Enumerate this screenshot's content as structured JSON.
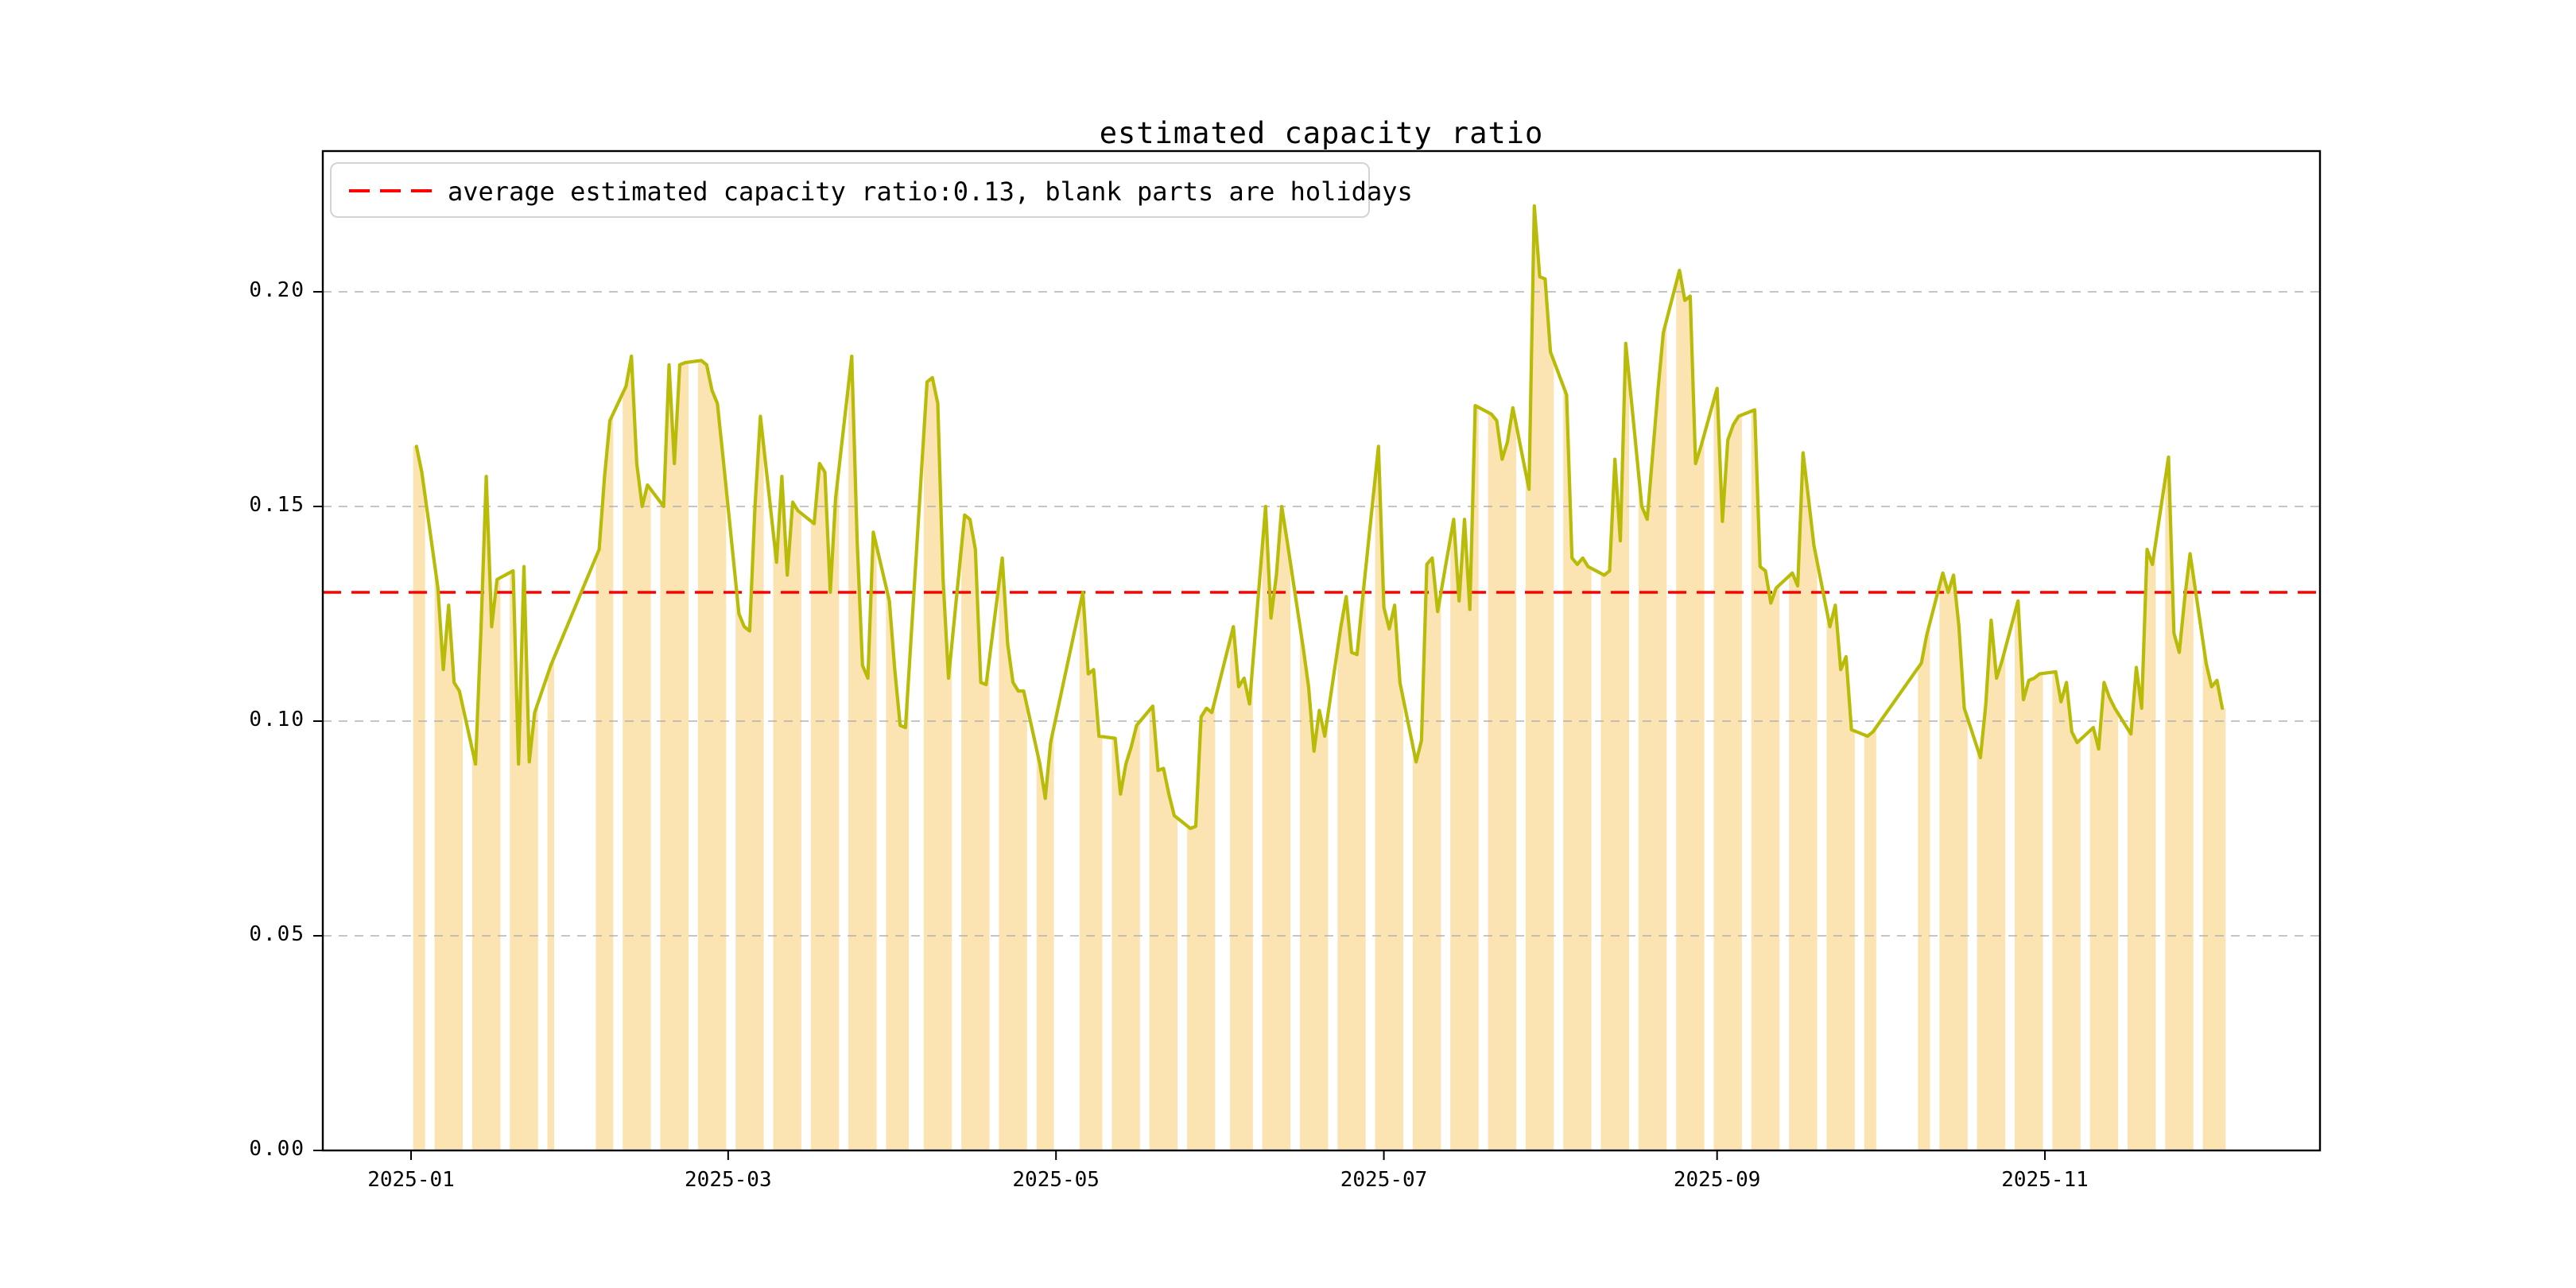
{
  "title": "estimated capacity ratio",
  "legend": {
    "label": "average estimated capacity ratio:0.13, blank parts are holidays"
  },
  "colors": {
    "line": "#b8bc08",
    "band_fill": "#fce3b2",
    "avg_line": "#ff0000",
    "grid": "#b2b2b2",
    "axis": "#000000",
    "legend_border": "#d4d4d4",
    "text": "#000000",
    "background": "#ffffff"
  },
  "chart_data": {
    "type": "line",
    "title": "estimated capacity ratio",
    "xlabel": "",
    "ylabel": "",
    "legend_position": "upper left",
    "grid": "dashed horizontal",
    "avg_line": {
      "value": 0.13,
      "style": "dashed",
      "color": "#ff0000"
    },
    "area_note": "orange area fills under the line for consecutive trading-day runs; white gaps are weekends/holidays",
    "ylim": [
      0.0,
      0.2328
    ],
    "xlim_days_from_jan1_2025": [
      -16.4,
      355.2
    ],
    "y_ticks": [
      [
        0.0,
        "0.00"
      ],
      [
        0.05,
        "0.05"
      ],
      [
        0.1,
        "0.10"
      ],
      [
        0.15,
        "0.15"
      ],
      [
        0.2,
        "0.20"
      ]
    ],
    "x_ticks": [
      [
        "2025-01",
        0
      ],
      [
        "2025-03",
        59
      ],
      [
        "2025-05",
        120
      ],
      [
        "2025-07",
        181
      ],
      [
        "2025-09",
        243
      ],
      [
        "2025-11",
        304
      ]
    ],
    "series_name": "estimated capacity ratio (daily, trading days only)",
    "series": [
      [
        "2025-01-02",
        0.164
      ],
      [
        "2025-01-03",
        0.158
      ],
      [
        "2025-01-06",
        0.131
      ],
      [
        "2025-01-07",
        0.112
      ],
      [
        "2025-01-08",
        0.127
      ],
      [
        "2025-01-09",
        0.109
      ],
      [
        "2025-01-10",
        0.107
      ],
      [
        "2025-01-13",
        0.09
      ],
      [
        "2025-01-14",
        0.121
      ],
      [
        "2025-01-15",
        0.157
      ],
      [
        "2025-01-16",
        0.122
      ],
      [
        "2025-01-17",
        0.133
      ],
      [
        "2025-01-20",
        0.135
      ],
      [
        "2025-01-21",
        0.09
      ],
      [
        "2025-01-22",
        0.136
      ],
      [
        "2025-01-23",
        0.0905
      ],
      [
        "2025-01-24",
        0.102
      ],
      [
        "2025-01-27",
        0.113
      ],
      [
        "2025-02-05",
        0.14
      ],
      [
        "2025-02-06",
        0.157
      ],
      [
        "2025-02-07",
        0.17
      ],
      [
        "2025-02-10",
        0.178
      ],
      [
        "2025-02-11",
        0.185
      ],
      [
        "2025-02-12",
        0.16
      ],
      [
        "2025-02-13",
        0.15
      ],
      [
        "2025-02-14",
        0.155
      ],
      [
        "2025-02-17",
        0.15
      ],
      [
        "2025-02-18",
        0.183
      ],
      [
        "2025-02-19",
        0.16
      ],
      [
        "2025-02-20",
        0.183
      ],
      [
        "2025-02-21",
        0.1835
      ],
      [
        "2025-02-24",
        0.184
      ],
      [
        "2025-02-25",
        0.183
      ],
      [
        "2025-02-26",
        0.177
      ],
      [
        "2025-02-27",
        0.174
      ],
      [
        "2025-02-28",
        0.162
      ],
      [
        "2025-03-03",
        0.125
      ],
      [
        "2025-03-04",
        0.122
      ],
      [
        "2025-03-05",
        0.121
      ],
      [
        "2025-03-06",
        0.15
      ],
      [
        "2025-03-07",
        0.171
      ],
      [
        "2025-03-10",
        0.137
      ],
      [
        "2025-03-11",
        0.157
      ],
      [
        "2025-03-12",
        0.134
      ],
      [
        "2025-03-13",
        0.151
      ],
      [
        "2025-03-14",
        0.149
      ],
      [
        "2025-03-17",
        0.146
      ],
      [
        "2025-03-18",
        0.16
      ],
      [
        "2025-03-19",
        0.158
      ],
      [
        "2025-03-20",
        0.13
      ],
      [
        "2025-03-21",
        0.152
      ],
      [
        "2025-03-24",
        0.185
      ],
      [
        "2025-03-25",
        0.142
      ],
      [
        "2025-03-26",
        0.113
      ],
      [
        "2025-03-27",
        0.11
      ],
      [
        "2025-03-28",
        0.144
      ],
      [
        "2025-03-31",
        0.128
      ],
      [
        "2025-04-01",
        0.112
      ],
      [
        "2025-04-02",
        0.099
      ],
      [
        "2025-04-03",
        0.0985
      ],
      [
        "2025-04-07",
        0.179
      ],
      [
        "2025-04-08",
        0.18
      ],
      [
        "2025-04-09",
        0.174
      ],
      [
        "2025-04-10",
        0.133
      ],
      [
        "2025-04-11",
        0.11
      ],
      [
        "2025-04-14",
        0.148
      ],
      [
        "2025-04-15",
        0.147
      ],
      [
        "2025-04-16",
        0.14
      ],
      [
        "2025-04-17",
        0.109
      ],
      [
        "2025-04-18",
        0.1085
      ],
      [
        "2025-04-21",
        0.138
      ],
      [
        "2025-04-22",
        0.118
      ],
      [
        "2025-04-23",
        0.109
      ],
      [
        "2025-04-24",
        0.107
      ],
      [
        "2025-04-25",
        0.107
      ],
      [
        "2025-04-28",
        0.09
      ],
      [
        "2025-04-29",
        0.082
      ],
      [
        "2025-04-30",
        0.095
      ],
      [
        "2025-05-06",
        0.13
      ],
      [
        "2025-05-07",
        0.111
      ],
      [
        "2025-05-08",
        0.112
      ],
      [
        "2025-05-09",
        0.0965
      ],
      [
        "2025-05-12",
        0.096
      ],
      [
        "2025-05-13",
        0.083
      ],
      [
        "2025-05-14",
        0.09
      ],
      [
        "2025-05-15",
        0.094
      ],
      [
        "2025-05-16",
        0.099
      ],
      [
        "2025-05-19",
        0.1035
      ],
      [
        "2025-05-20",
        0.0885
      ],
      [
        "2025-05-21",
        0.089
      ],
      [
        "2025-05-22",
        0.083
      ],
      [
        "2025-05-23",
        0.078
      ],
      [
        "2025-05-26",
        0.075
      ],
      [
        "2025-05-27",
        0.0755
      ],
      [
        "2025-05-28",
        0.101
      ],
      [
        "2025-05-29",
        0.103
      ],
      [
        "2025-05-30",
        0.102
      ],
      [
        "2025-06-03",
        0.122
      ],
      [
        "2025-06-04",
        0.108
      ],
      [
        "2025-06-05",
        0.11
      ],
      [
        "2025-06-06",
        0.104
      ],
      [
        "2025-06-09",
        0.15
      ],
      [
        "2025-06-10",
        0.124
      ],
      [
        "2025-06-11",
        0.134
      ],
      [
        "2025-06-12",
        0.15
      ],
      [
        "2025-06-13",
        0.142
      ],
      [
        "2025-06-16",
        0.117
      ],
      [
        "2025-06-17",
        0.108
      ],
      [
        "2025-06-18",
        0.093
      ],
      [
        "2025-06-19",
        0.1025
      ],
      [
        "2025-06-20",
        0.0965
      ],
      [
        "2025-06-23",
        0.122
      ],
      [
        "2025-06-24",
        0.129
      ],
      [
        "2025-06-25",
        0.116
      ],
      [
        "2025-06-26",
        0.1155
      ],
      [
        "2025-06-27",
        0.128
      ],
      [
        "2025-06-30",
        0.164
      ],
      [
        "2025-07-01",
        0.1265
      ],
      [
        "2025-07-02",
        0.1215
      ],
      [
        "2025-07-03",
        0.127
      ],
      [
        "2025-07-04",
        0.109
      ],
      [
        "2025-07-07",
        0.0905
      ],
      [
        "2025-07-08",
        0.0955
      ],
      [
        "2025-07-09",
        0.1365
      ],
      [
        "2025-07-10",
        0.138
      ],
      [
        "2025-07-11",
        0.1255
      ],
      [
        "2025-07-14",
        0.147
      ],
      [
        "2025-07-15",
        0.128
      ],
      [
        "2025-07-16",
        0.147
      ],
      [
        "2025-07-17",
        0.126
      ],
      [
        "2025-07-18",
        0.1735
      ],
      [
        "2025-07-21",
        0.1715
      ],
      [
        "2025-07-22",
        0.17
      ],
      [
        "2025-07-23",
        0.161
      ],
      [
        "2025-07-24",
        0.165
      ],
      [
        "2025-07-25",
        0.173
      ],
      [
        "2025-07-28",
        0.154
      ],
      [
        "2025-07-29",
        0.22
      ],
      [
        "2025-07-30",
        0.2035
      ],
      [
        "2025-07-31",
        0.203
      ],
      [
        "2025-08-01",
        0.186
      ],
      [
        "2025-08-04",
        0.176
      ],
      [
        "2025-08-05",
        0.138
      ],
      [
        "2025-08-06",
        0.1365
      ],
      [
        "2025-08-07",
        0.138
      ],
      [
        "2025-08-08",
        0.136
      ],
      [
        "2025-08-11",
        0.134
      ],
      [
        "2025-08-12",
        0.135
      ],
      [
        "2025-08-13",
        0.161
      ],
      [
        "2025-08-14",
        0.142
      ],
      [
        "2025-08-15",
        0.188
      ],
      [
        "2025-08-18",
        0.15
      ],
      [
        "2025-08-19",
        0.147
      ],
      [
        "2025-08-20",
        0.162
      ],
      [
        "2025-08-21",
        0.177
      ],
      [
        "2025-08-22",
        0.1905
      ],
      [
        "2025-08-25",
        0.205
      ],
      [
        "2025-08-26",
        0.198
      ],
      [
        "2025-08-27",
        0.199
      ],
      [
        "2025-08-28",
        0.16
      ],
      [
        "2025-08-29",
        0.164
      ],
      [
        "2025-09-01",
        0.1775
      ],
      [
        "2025-09-02",
        0.1465
      ],
      [
        "2025-09-03",
        0.1655
      ],
      [
        "2025-09-04",
        0.169
      ],
      [
        "2025-09-05",
        0.171
      ],
      [
        "2025-09-08",
        0.1725
      ],
      [
        "2025-09-09",
        0.136
      ],
      [
        "2025-09-10",
        0.135
      ],
      [
        "2025-09-11",
        0.1275
      ],
      [
        "2025-09-12",
        0.131
      ],
      [
        "2025-09-15",
        0.1345
      ],
      [
        "2025-09-16",
        0.1315
      ],
      [
        "2025-09-17",
        0.1625
      ],
      [
        "2025-09-18",
        0.152
      ],
      [
        "2025-09-19",
        0.141
      ],
      [
        "2025-09-22",
        0.122
      ],
      [
        "2025-09-23",
        0.127
      ],
      [
        "2025-09-24",
        0.112
      ],
      [
        "2025-09-25",
        0.115
      ],
      [
        "2025-09-26",
        0.098
      ],
      [
        "2025-09-29",
        0.0965
      ],
      [
        "2025-09-30",
        0.0975
      ],
      [
        "2025-10-09",
        0.1135
      ],
      [
        "2025-10-10",
        0.12
      ],
      [
        "2025-10-13",
        0.1345
      ],
      [
        "2025-10-14",
        0.13
      ],
      [
        "2025-10-15",
        0.134
      ],
      [
        "2025-10-16",
        0.122
      ],
      [
        "2025-10-17",
        0.103
      ],
      [
        "2025-10-20",
        0.0915
      ],
      [
        "2025-10-21",
        0.104
      ],
      [
        "2025-10-22",
        0.1235
      ],
      [
        "2025-10-23",
        0.11
      ],
      [
        "2025-10-24",
        0.114
      ],
      [
        "2025-10-27",
        0.128
      ],
      [
        "2025-10-28",
        0.105
      ],
      [
        "2025-10-29",
        0.1095
      ],
      [
        "2025-10-30",
        0.11
      ],
      [
        "2025-10-31",
        0.111
      ],
      [
        "2025-11-03",
        0.1115
      ],
      [
        "2025-11-04",
        0.1045
      ],
      [
        "2025-11-05",
        0.109
      ],
      [
        "2025-11-06",
        0.0975
      ],
      [
        "2025-11-07",
        0.095
      ],
      [
        "2025-11-10",
        0.0985
      ],
      [
        "2025-11-11",
        0.0935
      ],
      [
        "2025-11-12",
        0.109
      ],
      [
        "2025-11-13",
        0.1055
      ],
      [
        "2025-11-14",
        0.103
      ],
      [
        "2025-11-17",
        0.097
      ],
      [
        "2025-11-18",
        0.1125
      ],
      [
        "2025-11-19",
        0.103
      ],
      [
        "2025-11-20",
        0.14
      ],
      [
        "2025-11-21",
        0.1365
      ],
      [
        "2025-11-24",
        0.1615
      ],
      [
        "2025-11-25",
        0.1205
      ],
      [
        "2025-11-26",
        0.116
      ],
      [
        "2025-11-27",
        0.1285
      ],
      [
        "2025-11-28",
        0.139
      ],
      [
        "2025-12-01",
        0.1135
      ],
      [
        "2025-12-02",
        0.108
      ],
      [
        "2025-12-03",
        0.1095
      ],
      [
        "2025-12-04",
        0.103
      ]
    ]
  }
}
